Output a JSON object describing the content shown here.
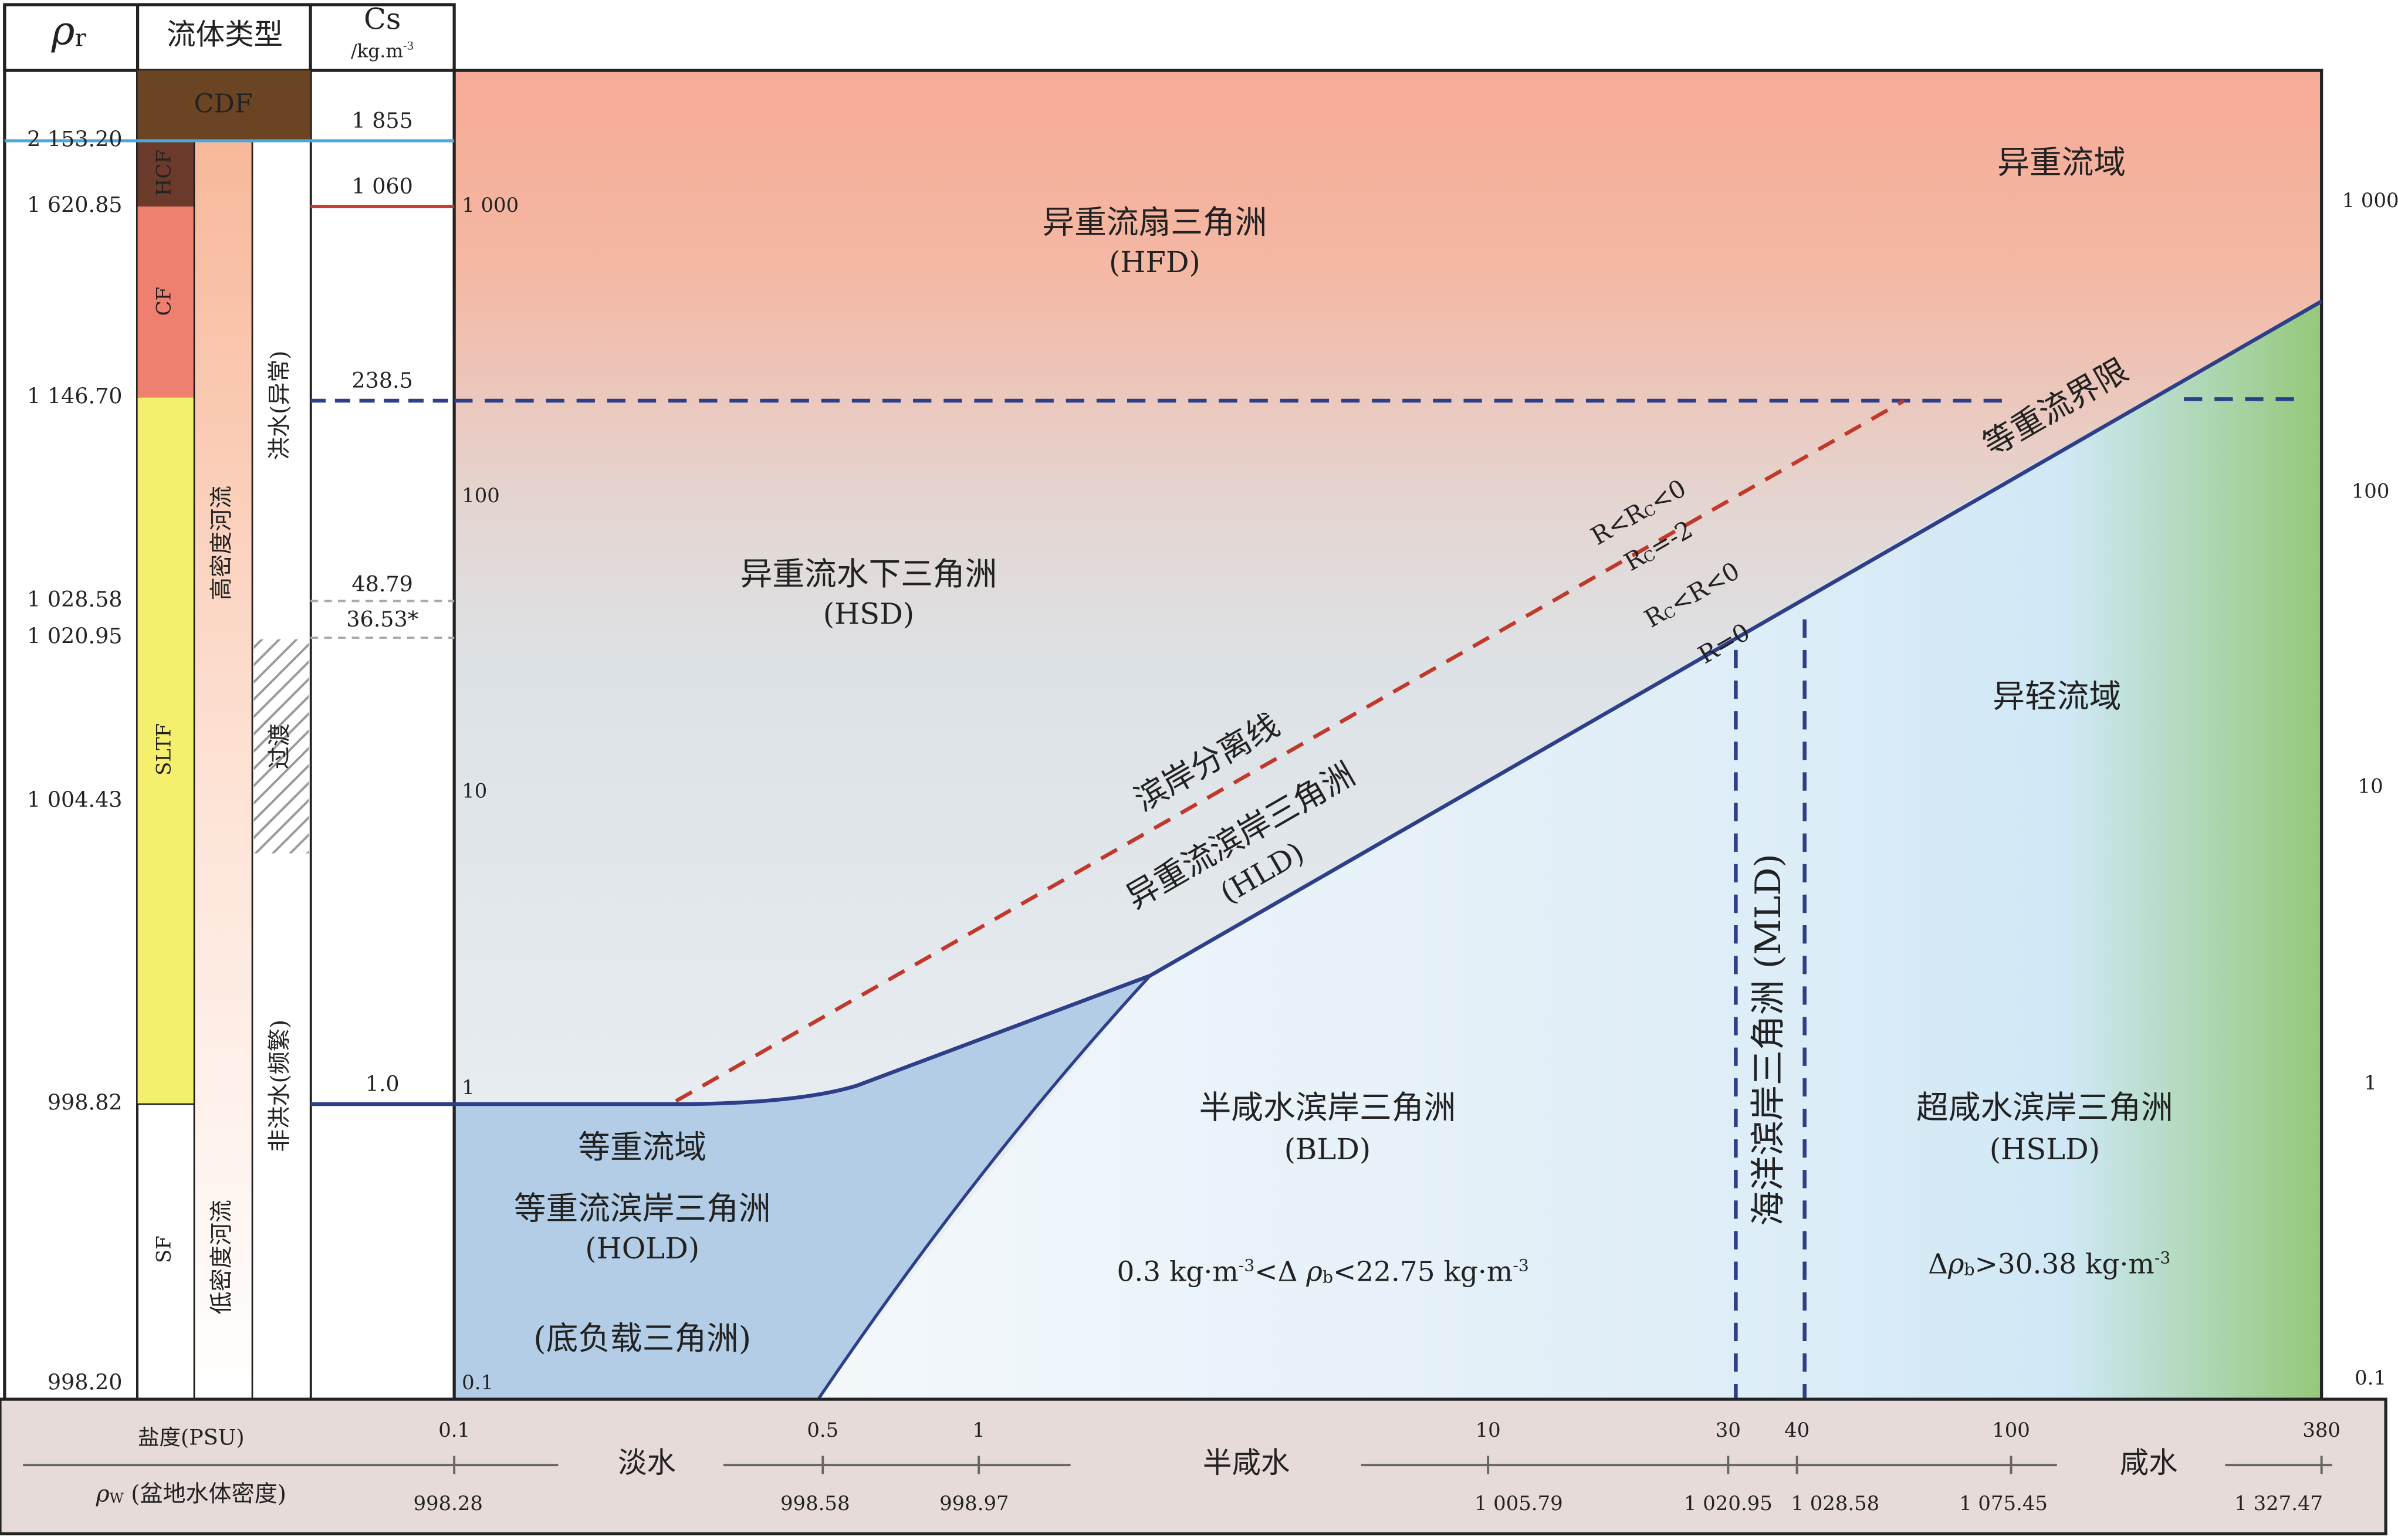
{
  "header": {
    "rho_r": [
      "ρ",
      {
        "sub": "r"
      }
    ],
    "fluid_type": "流体类型",
    "cs": "Cs",
    "cs_unit": [
      "/kg.m",
      {
        "sup": "-3"
      }
    ]
  },
  "rho_r_labels": [
    "2 153.20",
    "1 620.85",
    "1 146.70",
    "1 028.58",
    "1 020.95",
    "1 004.43",
    "998.82",
    "998.20"
  ],
  "fluid_types": {
    "cdf": "CDF",
    "hcf": "HCF",
    "cf": "CF",
    "sltf": "SLTF",
    "sf": "SF"
  },
  "river_types": {
    "high": "高密度河流",
    "low": "低密度河流"
  },
  "flood_types": {
    "flood": "洪水(异常)",
    "transition": "过渡",
    "non_flood": "非洪水(频繁)"
  },
  "cs_labels": [
    "1 855",
    "1 060",
    "238.5",
    "48.79",
    "36.53*",
    "1.0"
  ],
  "scale_left": [
    "1 000",
    "100",
    "10",
    "1",
    "0.1"
  ],
  "scale_right": [
    "1 000",
    "100",
    "10",
    "1",
    "0.1"
  ],
  "regions": {
    "hyperpycnal_domain": "异重流域",
    "hfd": [
      "异重流扇三角洲",
      "(HFD)"
    ],
    "hsd": [
      "异重流水下三角洲",
      "(HSD)"
    ],
    "hypopycnal_domain": "异轻流域",
    "isopycnal_limit": "等重流界限",
    "shore_separation": "滨岸分离线",
    "hld": [
      "异重流滨岸三角洲",
      "(HLD)"
    ],
    "r_rc": [
      "R<R",
      {
        "sub": "C"
      },
      "<0"
    ],
    "rc_value": [
      "R",
      {
        "sub": "C"
      },
      "=-2"
    ],
    "rc_r": [
      "R",
      {
        "sub": "C"
      },
      "<R<0"
    ],
    "r_zero": "R=0",
    "isopycnal_domain": "等重流域",
    "hold": [
      "等重流滨岸三角洲",
      "(HOLD)"
    ],
    "bedload": "(底负载三角洲)",
    "bld": [
      "半咸水滨岸三角洲",
      "(BLD)"
    ],
    "bld_range": [
      "0.3 kg·m",
      {
        "sup": "-3"
      },
      "<Δ ",
      "ρ",
      {
        "sub": "b"
      },
      "<22.75 kg·m",
      {
        "sup": "-3"
      }
    ],
    "mld": "海洋滨岸三角洲 (MLD)",
    "hsld": [
      "超咸水滨岸三角洲",
      "(HSLD)"
    ],
    "hsld_range": [
      "Δ",
      "ρ",
      {
        "sub": "b"
      },
      ">30.38 kg·m",
      {
        "sup": "-3"
      }
    ]
  },
  "bottom": {
    "salinity_title": "盐度(PSU)",
    "density_title": [
      "ρ",
      {
        "sub": "W"
      },
      " (盆地水体密度)"
    ],
    "water_types": [
      "淡水",
      "半咸水",
      "咸水"
    ],
    "salinity_ticks": [
      "0.1",
      "0.5",
      "1",
      "10",
      "30",
      "40",
      "100",
      "380"
    ],
    "density_ticks": [
      "998.28",
      "998.58",
      "998.97",
      "1 005.79",
      "1 020.95",
      "1 028.58",
      "1 075.45",
      "1 327.47"
    ]
  }
}
